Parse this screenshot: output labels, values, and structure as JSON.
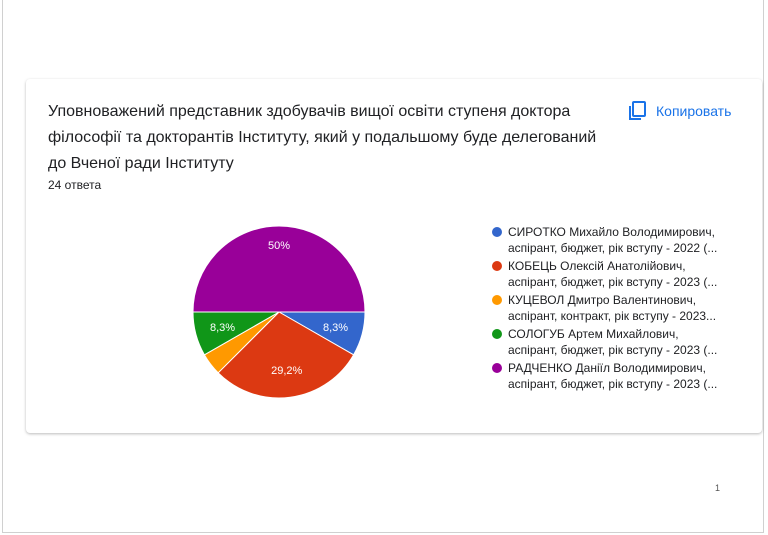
{
  "question": {
    "title": "Уповноважений представник здобувачів вищої освіти ступеня доктора філософії та докторантів Інституту,  який у подальшому буде делегований до Вченої ради Інституту",
    "responses": "24 ответа",
    "copy_label": "Копировать",
    "copy_icon": "copy-icon"
  },
  "chart_data": {
    "type": "pie",
    "slices": [
      {
        "label_line1": "СИРОТКО Михайло Володимирович,",
        "label_line2": "аспірант, бюджет, рік вступу - 2022 (...",
        "value": 8.3,
        "display": "8,3%",
        "color": "#3366cc"
      },
      {
        "label_line1": "КОБЕЦЬ Олексій Анатолійович,",
        "label_line2": "аспірант, бюджет, рік вступу - 2023 (...",
        "value": 29.2,
        "display": "29,2%",
        "color": "#dc3912"
      },
      {
        "label_line1": "КУЦЕВОЛ Дмитро Валентинович,",
        "label_line2": "аспірант, контракт, рік вступу - 2023...",
        "value": 4.2,
        "display": "",
        "color": "#ff9900"
      },
      {
        "label_line1": "СОЛОГУБ Артем Михайлович,",
        "label_line2": "аспірант, бюджет, рік вступу - 2023 (...",
        "value": 8.3,
        "display": "8,3%",
        "color": "#109618"
      },
      {
        "label_line1": "РАДЧЕНКО Даніїл Володимирович,",
        "label_line2": "аспірант, бюджет, рік вступу - 2023 (...",
        "value": 50,
        "display": "50%",
        "color": "#990099"
      }
    ],
    "legend_position": "right"
  },
  "page": {
    "number": "1"
  }
}
